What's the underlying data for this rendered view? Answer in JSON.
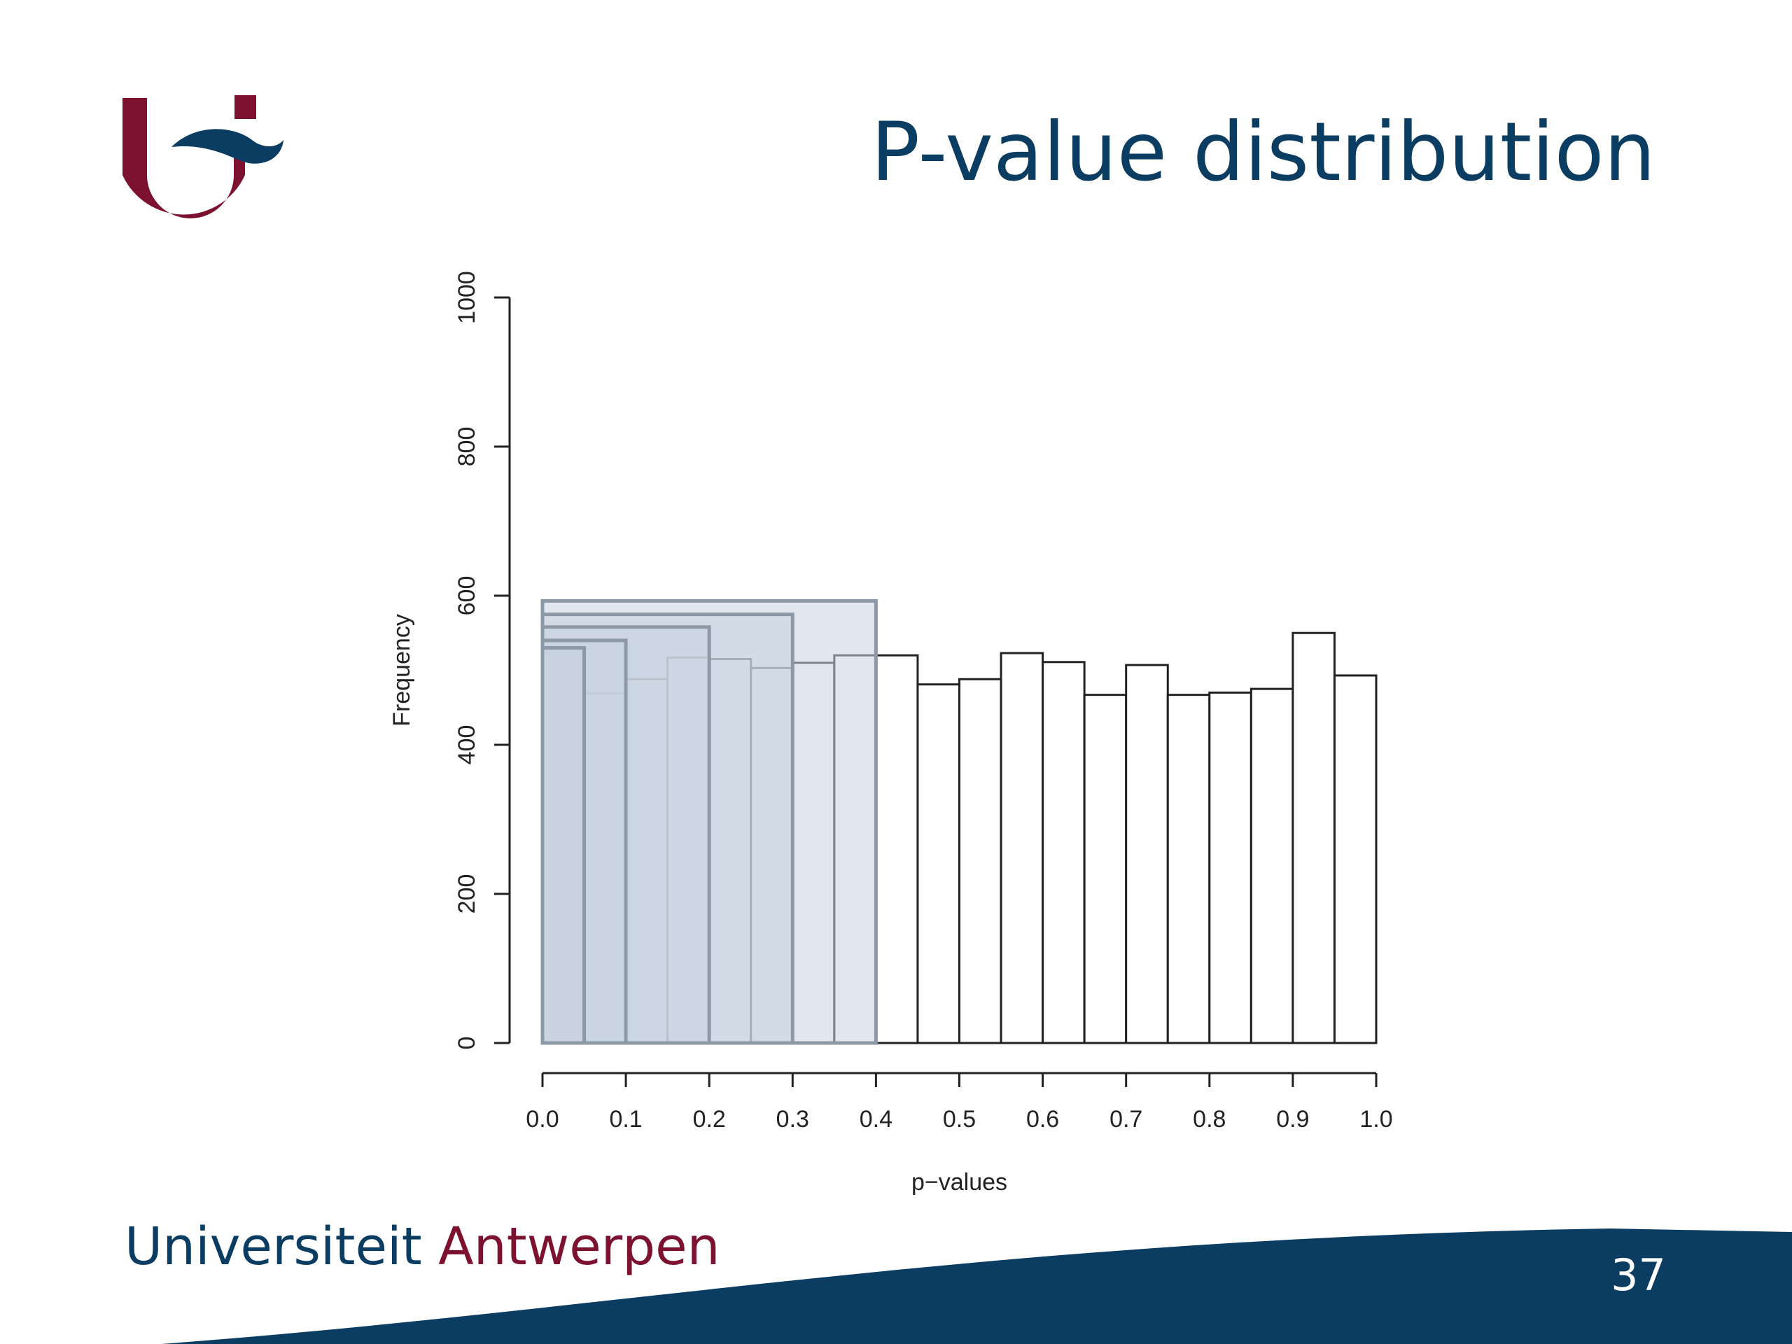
{
  "slide": {
    "title": "P-value distribution",
    "footer_university": "Universiteit",
    "footer_city": "Antwerpen",
    "page_number": "37",
    "colors": {
      "title": "#0b3d62",
      "brand_red": "#7d1230",
      "brand_blue": "#0b3d62",
      "highlight_fill": "#c9d3e0",
      "highlight_stroke": "#8e99a8"
    },
    "logo_icon": "university-antwerp-logo"
  },
  "chart_data": {
    "type": "bar",
    "subtype": "histogram",
    "xlabel": "p−values",
    "ylabel": "Frequency",
    "xlim": [
      0,
      1
    ],
    "ylim": [
      0,
      1000
    ],
    "xticks": [
      "0.0",
      "0.1",
      "0.2",
      "0.3",
      "0.4",
      "0.5",
      "0.6",
      "0.7",
      "0.8",
      "0.9",
      "1.0"
    ],
    "yticks": [
      "0",
      "200",
      "400",
      "600",
      "800",
      "1000"
    ],
    "bin_width": 0.05,
    "bin_edges": [
      0.0,
      0.05,
      0.1,
      0.15,
      0.2,
      0.25,
      0.3,
      0.35,
      0.4,
      0.45,
      0.5,
      0.55,
      0.6,
      0.65,
      0.7,
      0.75,
      0.8,
      0.85,
      0.9,
      0.95,
      1.0
    ],
    "values": [
      530,
      469,
      488,
      517,
      515,
      503,
      510,
      520,
      520,
      481,
      488,
      523,
      511,
      467,
      507,
      467,
      470,
      475,
      550,
      493
    ],
    "overlay_bars": [
      {
        "x_start": 0.0,
        "x_end": 0.05,
        "value": 530
      },
      {
        "x_start": 0.0,
        "x_end": 0.1,
        "value": 540
      },
      {
        "x_start": 0.0,
        "x_end": 0.2,
        "value": 558
      },
      {
        "x_start": 0.0,
        "x_end": 0.3,
        "value": 575
      },
      {
        "x_start": 0.0,
        "x_end": 0.4,
        "value": 593
      }
    ],
    "grid": false,
    "legend": "none"
  }
}
